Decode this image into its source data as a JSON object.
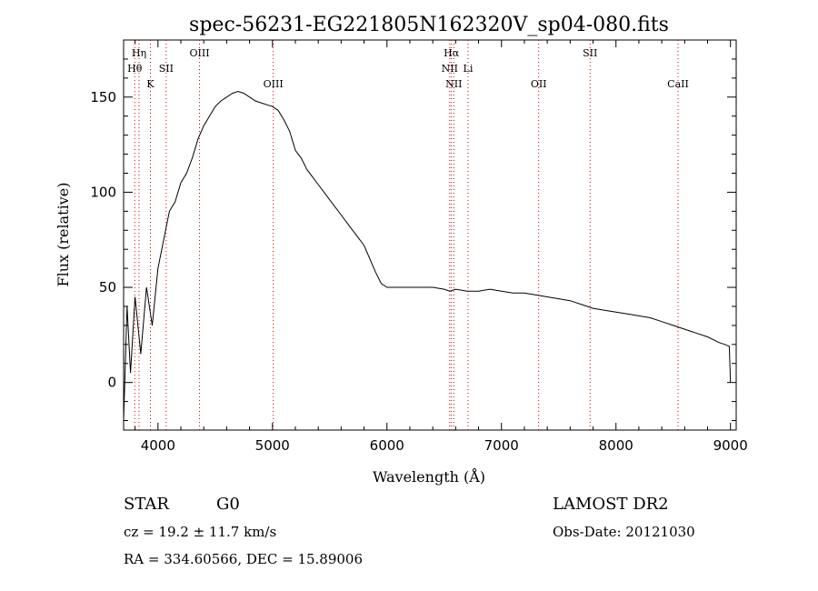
{
  "chart_data": {
    "type": "line",
    "title": "spec-56231-EG221805N162320V_sp04-080.fits",
    "xlabel": "Wavelength (Å)",
    "ylabel": "Flux (relative)",
    "xlim": [
      3700,
      9050
    ],
    "ylim": [
      -25,
      180
    ],
    "xticks": [
      4000,
      5000,
      6000,
      7000,
      8000,
      9000
    ],
    "yticks": [
      0,
      50,
      100,
      150
    ],
    "xtick_labels": [
      "4000",
      "5000",
      "6000",
      "7000",
      "8000",
      "9000"
    ],
    "ytick_labels": [
      "0",
      "50",
      "100",
      "150"
    ],
    "grid": false,
    "series": [
      {
        "x": [
          3700,
          3730,
          3760,
          3800,
          3850,
          3900,
          3950,
          4000,
          4050,
          4100,
          4150,
          4200,
          4250,
          4300,
          4350,
          4400,
          4450,
          4500,
          4550,
          4600,
          4650,
          4700,
          4750,
          4800,
          4850,
          4900,
          4950,
          5000,
          5050,
          5100,
          5150,
          5200,
          5250,
          5300,
          5350,
          5400,
          5450,
          5500,
          5550,
          5600,
          5650,
          5700,
          5750,
          5800,
          5850,
          5900,
          5950,
          6000,
          6100,
          6200,
          6300,
          6400,
          6500,
          6550,
          6600,
          6700,
          6800,
          6900,
          7000,
          7100,
          7200,
          7300,
          7400,
          7500,
          7600,
          7700,
          7800,
          7900,
          8000,
          8100,
          8200,
          8300,
          8400,
          8500,
          8600,
          8700,
          8800,
          8900,
          8950,
          8990,
          9000
        ],
        "y": [
          -20,
          40,
          5,
          45,
          15,
          50,
          30,
          60,
          75,
          90,
          95,
          105,
          110,
          118,
          128,
          135,
          140,
          145,
          148,
          150,
          152,
          153,
          152,
          150,
          148,
          147,
          146,
          145,
          143,
          138,
          132,
          122,
          118,
          112,
          108,
          104,
          100,
          96,
          92,
          88,
          84,
          80,
          76,
          72,
          65,
          58,
          52,
          50,
          50,
          50,
          50,
          50,
          49,
          48,
          49,
          48,
          48,
          49,
          48,
          47,
          47,
          46,
          45,
          44,
          43,
          41,
          39,
          38,
          37,
          36,
          35,
          34,
          32,
          30,
          28,
          26,
          24,
          21,
          20,
          19,
          0
        ]
      }
    ],
    "line_markers": [
      {
        "x": 3835,
        "label": "Hη"
      },
      {
        "x": 3797,
        "label": "Hθ"
      },
      {
        "x": 3934,
        "label": "K"
      },
      {
        "x": 4072,
        "label": "SII"
      },
      {
        "x": 4363,
        "label": "OIII"
      },
      {
        "x": 5007,
        "label": "OIII"
      },
      {
        "x": 6563,
        "label": "Hα"
      },
      {
        "x": 6548,
        "label": "NII"
      },
      {
        "x": 6584,
        "label": "NII"
      },
      {
        "x": 6708,
        "label": "Li"
      },
      {
        "x": 7325,
        "label": "OII"
      },
      {
        "x": 7774,
        "label": "SII"
      },
      {
        "x": 8542,
        "label": "CaII"
      }
    ]
  },
  "footer": {
    "class_label": "STAR",
    "subclass_label": "G0",
    "cz": "cz = 19.2 ± 11.7 km/s",
    "coords": "RA = 334.60566, DEC =  15.89006",
    "survey": "LAMOST DR2",
    "obs_date": "Obs-Date: 20121030"
  }
}
